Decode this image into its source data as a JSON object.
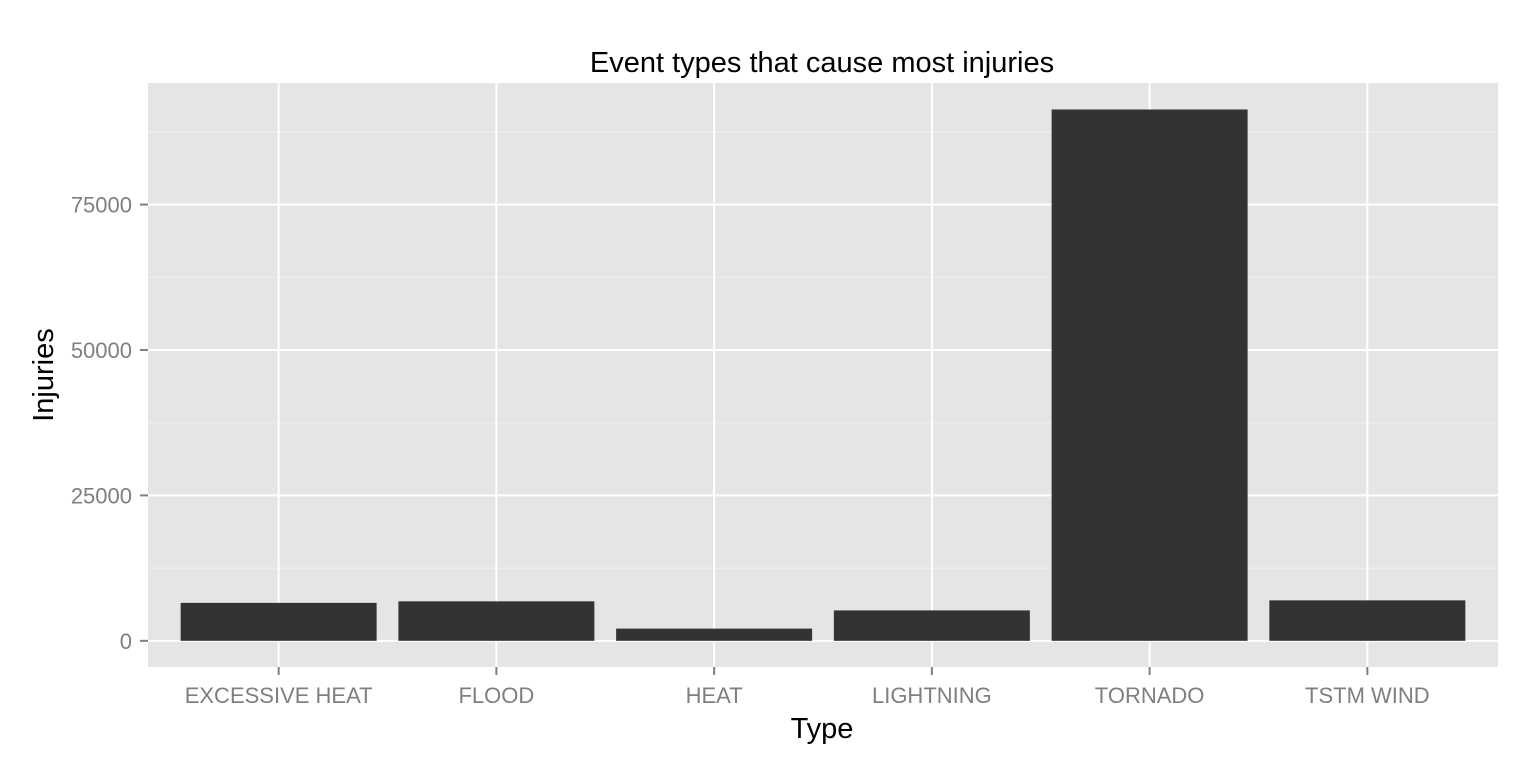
{
  "chart_data": {
    "type": "bar",
    "title": "Event types that cause most injuries",
    "xlabel": "Type",
    "ylabel": "Injuries",
    "categories": [
      "EXCESSIVE HEAT",
      "FLOOD",
      "HEAT",
      "LIGHTNING",
      "TORNADO",
      "TSTM WIND"
    ],
    "values": [
      6525,
      6789,
      2100,
      5230,
      91346,
      6957
    ],
    "ylim": [
      -4500,
      95900
    ],
    "yticks": [
      0,
      25000,
      50000,
      75000
    ],
    "ytick_labels": [
      "0",
      "25000",
      "50000",
      "75000"
    ],
    "grid": true,
    "legend": "none",
    "colors": {
      "bar": "#333333",
      "panel": "#e5e5e5",
      "grid_major": "#ffffff",
      "grid_minor": "#f2f2f2",
      "tick_text": "#7f7f7f"
    }
  }
}
